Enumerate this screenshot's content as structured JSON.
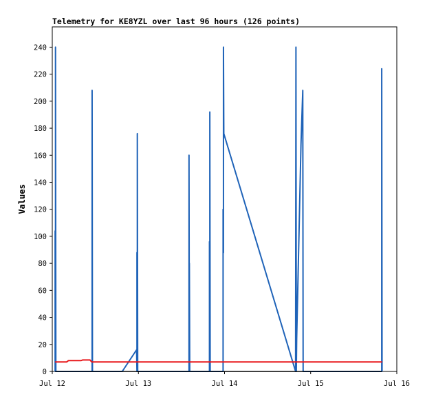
{
  "chart_data": {
    "type": "line",
    "title": "Telemetry for KE8YZL over last 96 hours (126 points)",
    "xlabel": "",
    "ylabel": "Values",
    "x_unit": "hours",
    "xlim": [
      0,
      96
    ],
    "ylim": [
      0,
      255
    ],
    "x_ticks": [
      {
        "label": "Jul 12",
        "x": 0
      },
      {
        "label": "Jul 13",
        "x": 24
      },
      {
        "label": "Jul 14",
        "x": 48
      },
      {
        "label": "Jul 15",
        "x": 72
      },
      {
        "label": "Jul 16",
        "x": 96
      }
    ],
    "y_ticks": [
      0,
      20,
      40,
      60,
      80,
      100,
      120,
      140,
      160,
      180,
      200,
      220,
      240
    ],
    "grid": false,
    "legend": "none",
    "colors": {
      "series_blue": "#1f63b8",
      "series_red": "#e8191c",
      "series_black": "#000000"
    },
    "series": [
      {
        "color": "#1f63b8",
        "points": [
          [
            0.8,
            0
          ],
          [
            0.8,
            104
          ],
          [
            0.9,
            0
          ],
          [
            0.9,
            240
          ],
          [
            1.0,
            0
          ],
          [
            11.1,
            0
          ],
          [
            11.1,
            208
          ],
          [
            11.2,
            0
          ],
          [
            19.5,
            0
          ],
          [
            23.5,
            16
          ],
          [
            23.6,
            0
          ],
          [
            23.6,
            88
          ],
          [
            23.7,
            0
          ],
          [
            23.7,
            176
          ],
          [
            23.8,
            0
          ],
          [
            38.1,
            0
          ],
          [
            38.1,
            160
          ],
          [
            38.2,
            0
          ],
          [
            38.2,
            80
          ],
          [
            38.3,
            0
          ],
          [
            43.8,
            0
          ],
          [
            43.8,
            96
          ],
          [
            43.9,
            0
          ],
          [
            43.9,
            192
          ],
          [
            44.0,
            0
          ],
          [
            47.6,
            0
          ],
          [
            47.6,
            120
          ],
          [
            47.7,
            88
          ],
          [
            47.7,
            240
          ],
          [
            47.8,
            176
          ],
          [
            67.8,
            0
          ],
          [
            67.9,
            240
          ],
          [
            68.0,
            0
          ],
          [
            68.1,
            24
          ],
          [
            68.3,
            48
          ],
          [
            68.5,
            72
          ],
          [
            68.7,
            96
          ],
          [
            68.9,
            120
          ],
          [
            69.1,
            144
          ],
          [
            69.3,
            168
          ],
          [
            69.5,
            184
          ],
          [
            69.7,
            200
          ],
          [
            69.8,
            208
          ],
          [
            69.9,
            0
          ],
          [
            91.8,
            0
          ],
          [
            91.8,
            224
          ],
          [
            91.9,
            0
          ]
        ]
      },
      {
        "color": "#e8191c",
        "points": [
          [
            0.8,
            7
          ],
          [
            4.0,
            7
          ],
          [
            4.5,
            8
          ],
          [
            8.0,
            8
          ],
          [
            8.5,
            8.5
          ],
          [
            10.5,
            8.5
          ],
          [
            11.0,
            7
          ],
          [
            91.9,
            7
          ]
        ]
      },
      {
        "color": "#000000",
        "points": [
          [
            0.8,
            0
          ],
          [
            91.9,
            0
          ]
        ]
      }
    ]
  }
}
